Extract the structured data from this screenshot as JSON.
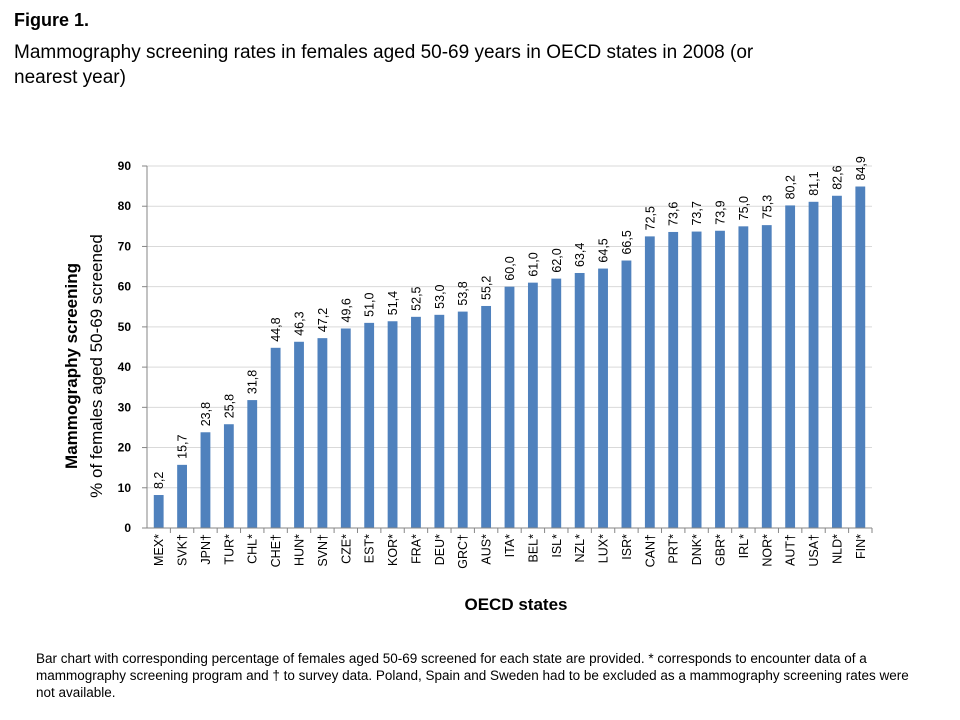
{
  "figure": {
    "label": "Figure 1.",
    "title": "Mammography screening rates in females aged 50-69 years in OECD states in 2008 (or nearest year)",
    "caption": "Bar chart with corresponding percentage of females aged 50-69 screened for each state are provided. * corresponds to encounter data of a mammography screening program and † to survey data. Poland, Spain and Sweden had to be excluded as a mammography screening rates were not available."
  },
  "colors": {
    "bar": "#4f81bd",
    "axis": "#868686",
    "grid": "#d9d9d9"
  },
  "chart_data": {
    "type": "bar",
    "xlabel": "OECD states",
    "ylabel_line1": "Mammography screening",
    "ylabel_line2": "% of females aged 50-69 screened",
    "ylim": [
      0,
      90
    ],
    "yticks": [
      0,
      10,
      20,
      30,
      40,
      50,
      60,
      70,
      80,
      90
    ],
    "grid": true,
    "legend": "none",
    "categories": [
      "MEX*",
      "SVK†",
      "JPN†",
      "TUR*",
      "CHL*",
      "CHE†",
      "HUN*",
      "SVN†",
      "CZE*",
      "EST*",
      "KOR*",
      "FRA*",
      "DEU*",
      "GRC†",
      "AUS*",
      "ITA*",
      "BEL*",
      "ISL*",
      "NZL*",
      "LUX*",
      "ISR*",
      "CAN†",
      "PRT*",
      "DNK*",
      "GBR*",
      "IRL*",
      "NOR*",
      "AUT†",
      "USA†",
      "NLD*",
      "FIN*"
    ],
    "values": [
      8.2,
      15.7,
      23.8,
      25.8,
      31.8,
      44.8,
      46.3,
      47.2,
      49.6,
      51.0,
      51.4,
      52.5,
      53.0,
      53.8,
      55.2,
      60.0,
      61.0,
      62.0,
      63.4,
      64.5,
      66.5,
      72.5,
      73.6,
      73.7,
      73.9,
      75.0,
      75.3,
      80.2,
      81.1,
      82.6,
      84.9
    ],
    "value_labels": [
      "8,2",
      "15,7",
      "23,8",
      "25,8",
      "31,8",
      "44,8",
      "46,3",
      "47,2",
      "49,6",
      "51,0",
      "51,4",
      "52,5",
      "53,0",
      "53,8",
      "55,2",
      "60,0",
      "61,0",
      "62,0",
      "63,4",
      "64,5",
      "66,5",
      "72,5",
      "73,6",
      "73,7",
      "73,9",
      "75,0",
      "75,3",
      "80,2",
      "81,1",
      "82,6",
      "84,9"
    ]
  }
}
